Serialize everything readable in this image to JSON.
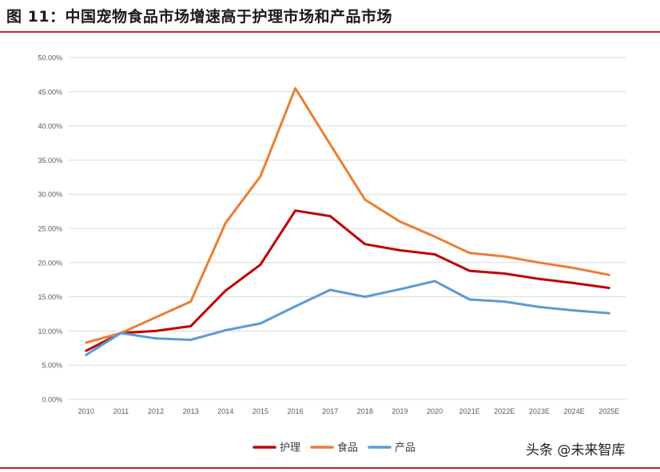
{
  "figure": {
    "title": "图 11：中国宠物食品市场增速高于护理市场和产品市场",
    "watermark": "头条 @未来智库"
  },
  "colors": {
    "rule": "#c0262c",
    "grid": "#d9d9d9",
    "axis_text": "#595959"
  },
  "chart_data": {
    "type": "line",
    "title": "",
    "xlabel": "",
    "ylabel": "",
    "categories": [
      "2010",
      "2011",
      "2012",
      "2013",
      "2014",
      "2015",
      "2016",
      "2017",
      "2018",
      "2019",
      "2020",
      "2021E",
      "2022E",
      "2023E",
      "2024E",
      "2025E"
    ],
    "ylim": [
      0,
      0.5
    ],
    "yticks": [
      0,
      0.05,
      0.1,
      0.15,
      0.2,
      0.25,
      0.3,
      0.35,
      0.4,
      0.45,
      0.5
    ],
    "ytick_labels": [
      "0.00%",
      "5.00%",
      "10.00%",
      "15.00%",
      "20.00%",
      "25.00%",
      "30.00%",
      "35.00%",
      "40.00%",
      "45.00%",
      "50.00%"
    ],
    "grid": true,
    "legend_position": "bottom-center",
    "series": [
      {
        "name": "护理",
        "color": "#c00000",
        "values": [
          0.071,
          0.097,
          0.1,
          0.107,
          0.159,
          0.197,
          0.276,
          0.268,
          0.227,
          0.218,
          0.212,
          0.188,
          0.184,
          0.176,
          0.17,
          0.163
        ]
      },
      {
        "name": "食品",
        "color": "#ed7d31",
        "values": [
          0.083,
          0.097,
          0.12,
          0.143,
          0.258,
          0.326,
          0.455,
          0.373,
          0.292,
          0.26,
          0.238,
          0.214,
          0.209,
          0.2,
          0.192,
          0.182
        ]
      },
      {
        "name": "产品",
        "color": "#5b9bd5",
        "values": [
          0.065,
          0.097,
          0.089,
          0.087,
          0.101,
          0.111,
          0.136,
          0.16,
          0.15,
          0.161,
          0.173,
          0.146,
          0.143,
          0.135,
          0.13,
          0.126
        ]
      }
    ]
  }
}
